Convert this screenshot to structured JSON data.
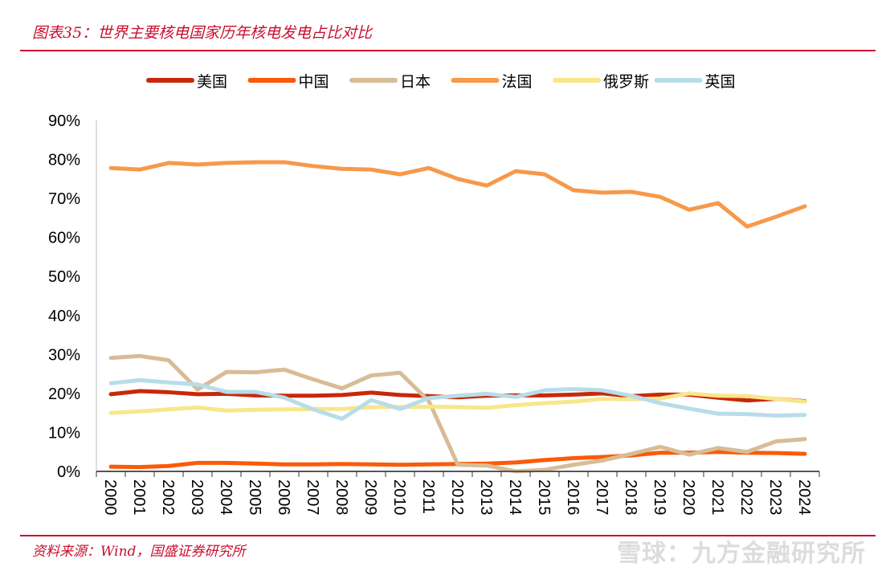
{
  "header": {
    "title": "图表35：世界主要核电国家历年核电发电占比对比"
  },
  "footer": {
    "source": "资料来源：Wind，国盛证券研究所",
    "watermark": "雪球：九方金融研究所"
  },
  "chart_data": {
    "type": "line",
    "title": "世界主要核电国家历年核电发电占比对比",
    "xlabel": "",
    "ylabel": "",
    "ylim": [
      0,
      90
    ],
    "yticks": [
      "0%",
      "10%",
      "20%",
      "30%",
      "40%",
      "50%",
      "60%",
      "70%",
      "80%",
      "90%"
    ],
    "legend_position": "top",
    "categories": [
      "2000",
      "2001",
      "2002",
      "2003",
      "2004",
      "2005",
      "2006",
      "2007",
      "2008",
      "2009",
      "2010",
      "2011",
      "2012",
      "2013",
      "2014",
      "2015",
      "2016",
      "2017",
      "2018",
      "2019",
      "2020",
      "2021",
      "2022",
      "2023",
      "2024"
    ],
    "series": [
      {
        "name": "美国",
        "color": "#c8280a",
        "values": [
          19.8,
          20.6,
          20.3,
          19.8,
          19.9,
          19.5,
          19.4,
          19.4,
          19.6,
          20.2,
          19.6,
          19.3,
          19.0,
          19.4,
          19.5,
          19.5,
          19.7,
          20.0,
          19.3,
          19.7,
          19.7,
          18.9,
          18.2,
          18.6,
          18.0
        ]
      },
      {
        "name": "中国",
        "color": "#fa5a0a",
        "values": [
          1.2,
          1.1,
          1.4,
          2.2,
          2.2,
          2.0,
          1.8,
          1.8,
          1.9,
          1.8,
          1.7,
          1.8,
          1.9,
          2.0,
          2.3,
          2.9,
          3.4,
          3.7,
          4.1,
          4.8,
          4.8,
          5.0,
          4.8,
          4.7,
          4.5
        ]
      },
      {
        "name": "日本",
        "color": "#d8bc96",
        "values": [
          29.1,
          29.6,
          28.5,
          21.0,
          25.5,
          25.4,
          26.1,
          23.6,
          21.3,
          24.6,
          25.3,
          18.0,
          1.7,
          1.5,
          0.0,
          0.4,
          1.7,
          2.8,
          4.5,
          6.3,
          4.3,
          6.0,
          5.0,
          7.7,
          8.3
        ]
      },
      {
        "name": "法国",
        "color": "#f7994a",
        "values": [
          77.8,
          77.4,
          79.1,
          78.7,
          79.1,
          79.3,
          79.3,
          78.3,
          77.6,
          77.4,
          76.2,
          77.8,
          75.0,
          73.3,
          77.0,
          76.2,
          72.1,
          71.5,
          71.7,
          70.4,
          67.1,
          68.8,
          62.8,
          65.3,
          68.0
        ]
      },
      {
        "name": "俄罗斯",
        "color": "#f8e68a",
        "values": [
          15.0,
          15.4,
          15.9,
          16.4,
          15.6,
          15.8,
          15.9,
          16.0,
          16.0,
          16.5,
          16.5,
          16.6,
          16.5,
          16.3,
          17.0,
          17.5,
          17.9,
          18.6,
          18.5,
          18.7,
          20.0,
          19.4,
          19.3,
          18.6,
          17.9
        ]
      },
      {
        "name": "英国",
        "color": "#b7dde8",
        "values": [
          22.6,
          23.4,
          22.8,
          22.3,
          20.4,
          20.4,
          18.9,
          15.9,
          13.5,
          18.3,
          16.0,
          18.8,
          19.4,
          19.9,
          19.1,
          20.8,
          21.1,
          20.8,
          19.4,
          17.5,
          16.1,
          14.8,
          14.7,
          14.3,
          14.5
        ]
      }
    ]
  }
}
